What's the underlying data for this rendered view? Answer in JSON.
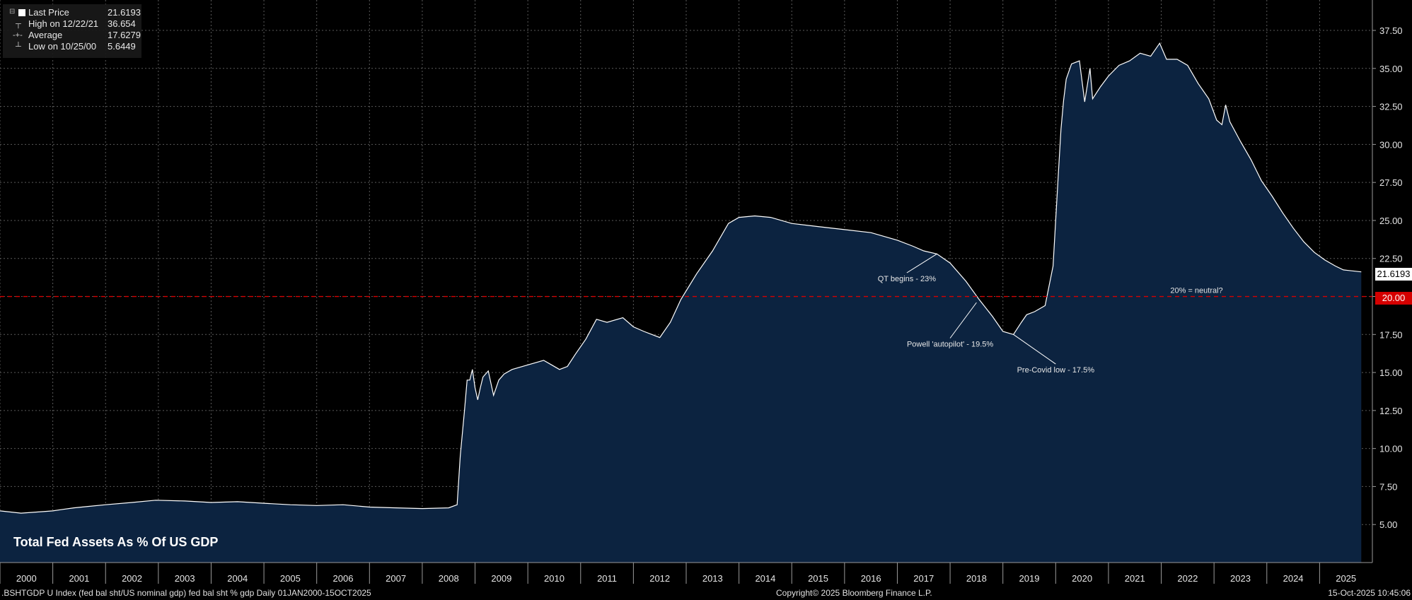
{
  "chart_data": {
    "type": "area",
    "title": "Total Fed Assets As % Of US GDP",
    "ylim": [
      2.5,
      39.5
    ],
    "y_ticks": [
      "5.00",
      "7.50",
      "10.00",
      "12.50",
      "15.00",
      "17.50",
      "20.00",
      "22.50",
      "25.00",
      "27.50",
      "30.00",
      "32.50",
      "35.00",
      "37.50"
    ],
    "x_labels": [
      "2000",
      "2001",
      "2002",
      "2003",
      "2004",
      "2005",
      "2006",
      "2007",
      "2008",
      "2009",
      "2010",
      "2011",
      "2012",
      "2013",
      "2014",
      "2015",
      "2016",
      "2017",
      "2018",
      "2019",
      "2020",
      "2021",
      "2022",
      "2023",
      "2024",
      "2025"
    ],
    "grid": true,
    "legend_position": "top-left",
    "series": [
      {
        "name": "Last Price",
        "x": [
          2000.0,
          2000.4,
          2000.82,
          2001.0,
          2001.2,
          2001.4,
          2001.7,
          2002.0,
          2002.5,
          2002.95,
          2003.5,
          2004.0,
          2004.5,
          2005.0,
          2005.5,
          2006.0,
          2006.5,
          2007.0,
          2007.5,
          2008.0,
          2008.5,
          2008.66,
          2008.72,
          2008.8,
          2008.85,
          2008.9,
          2008.95,
          2009.0,
          2009.05,
          2009.1,
          2009.15,
          2009.25,
          2009.35,
          2009.45,
          2009.55,
          2009.7,
          2010.0,
          2010.3,
          2010.45,
          2010.6,
          2010.75,
          2010.9,
          2011.1,
          2011.3,
          2011.5,
          2011.8,
          2012.0,
          2012.2,
          2012.35,
          2012.5,
          2012.7,
          2012.9,
          2013.2,
          2013.5,
          2013.8,
          2014.0,
          2014.3,
          2014.6,
          2015.0,
          2015.5,
          2016.0,
          2016.5,
          2017.0,
          2017.3,
          2017.5,
          2017.75,
          2018.0,
          2018.3,
          2018.55,
          2018.8,
          2019.0,
          2019.2,
          2019.35,
          2019.45,
          2019.6,
          2019.8,
          2019.95,
          2020.05,
          2020.1,
          2020.15,
          2020.2,
          2020.3,
          2020.45,
          2020.55,
          2020.65,
          2020.7,
          2020.85,
          2021.0,
          2021.2,
          2021.4,
          2021.6,
          2021.8,
          2021.97,
          2022.1,
          2022.3,
          2022.5,
          2022.7,
          2022.9,
          2023.05,
          2023.15,
          2023.22,
          2023.3,
          2023.5,
          2023.7,
          2023.9,
          2024.1,
          2024.3,
          2024.5,
          2024.7,
          2024.9,
          2025.1,
          2025.3,
          2025.45,
          2025.79
        ],
        "y": [
          5.9,
          5.75,
          5.85,
          5.9,
          6.0,
          6.1,
          6.2,
          6.3,
          6.45,
          6.6,
          6.55,
          6.45,
          6.5,
          6.4,
          6.3,
          6.25,
          6.3,
          6.15,
          6.1,
          6.05,
          6.1,
          6.3,
          9.5,
          12.5,
          14.5,
          14.5,
          15.2,
          14.0,
          13.2,
          14.0,
          14.7,
          15.1,
          13.5,
          14.5,
          14.9,
          15.2,
          15.5,
          15.8,
          15.5,
          15.2,
          15.4,
          16.2,
          17.2,
          18.5,
          18.3,
          18.6,
          18.0,
          17.7,
          17.5,
          17.3,
          18.3,
          19.8,
          21.5,
          23.0,
          24.8,
          25.2,
          25.3,
          25.2,
          24.8,
          24.6,
          24.4,
          24.2,
          23.7,
          23.3,
          23.0,
          22.8,
          22.2,
          21.0,
          19.8,
          18.7,
          17.7,
          17.5,
          18.3,
          18.8,
          19.0,
          19.4,
          22.0,
          28.0,
          31.0,
          32.9,
          34.3,
          35.3,
          35.5,
          32.8,
          35.0,
          33.0,
          33.8,
          34.5,
          35.2,
          35.5,
          36.0,
          35.8,
          36.654,
          35.6,
          35.6,
          35.2,
          34.0,
          33.0,
          31.6,
          31.3,
          32.6,
          31.5,
          30.2,
          29.0,
          27.6,
          26.6,
          25.5,
          24.5,
          23.6,
          22.9,
          22.4,
          22.0,
          21.75,
          21.6193
        ]
      }
    ],
    "legend": [
      {
        "symbol": "",
        "name": "Last Price",
        "value": "21.6193"
      },
      {
        "symbol": "┬",
        "name": "High on 12/22/21",
        "value": "36.654"
      },
      {
        "symbol": "-+-",
        "name": "Average",
        "value": "17.6279"
      },
      {
        "symbol": "┴",
        "name": "Low on 10/25/00",
        "value": "5.6449"
      }
    ],
    "last_value_label": "21.6193",
    "reference_line": {
      "value": 20.0,
      "label": "20.00",
      "annotation": "20% = neutral?"
    },
    "annotations": [
      {
        "text": "QT begins - 23%",
        "point": [
          2017.75,
          22.8
        ],
        "text_at": [
          2017.18,
          21.0
        ]
      },
      {
        "text": "Powell 'autopilot' - 19.5%",
        "point": [
          2018.5,
          19.6
        ],
        "text_at": [
          2018.0,
          16.7
        ]
      },
      {
        "text": "Pre-Covid low - 17.5%",
        "point": [
          2019.2,
          17.5
        ],
        "text_at": [
          2020.0,
          15.0
        ]
      }
    ],
    "colors": {
      "background": "#000000",
      "area_fill": "#0c2340",
      "line": "#ffffff",
      "grid": "#5a5a5a",
      "reference": "#d50000",
      "tag_red": "#d50000"
    }
  },
  "footer": {
    "left": ".BSHTGDP U Index (fed bal sht/US nominal gdp) fed bal sht % gdp Daily 01JAN2000-15OCT2025",
    "center": "Copyright© 2025 Bloomberg Finance L.P.",
    "right": "15-Oct-2025 10:45:06"
  }
}
